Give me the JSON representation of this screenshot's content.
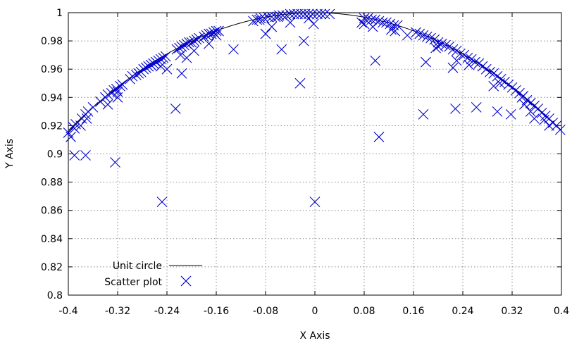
{
  "chart_data": {
    "type": "scatter",
    "xlabel": "X Axis",
    "ylabel": "Y Axis",
    "xlim": [
      -0.4,
      0.4
    ],
    "ylim": [
      0.8,
      1.0
    ],
    "grid": true,
    "legend_position": "bottom-left",
    "x_ticks": [
      -0.4,
      -0.32,
      -0.24,
      -0.16,
      -0.08,
      0,
      0.08,
      0.16,
      0.24,
      0.32,
      0.4
    ],
    "x_tick_labels": [
      "-0.4",
      "-0.32",
      "-0.24",
      "-0.16",
      "-0.08",
      "0",
      "0.08",
      "0.16",
      "0.24",
      "0.32",
      "0.4"
    ],
    "y_ticks": [
      0.8,
      0.82,
      0.84,
      0.86,
      0.88,
      0.9,
      0.92,
      0.94,
      0.96,
      0.98,
      1.0
    ],
    "y_tick_labels": [
      "0.8",
      "0.82",
      "0.84",
      "0.86",
      "0.88",
      "0.9",
      "0.92",
      "0.94",
      "0.96",
      "0.98",
      "1"
    ],
    "series": [
      {
        "name": "Unit circle",
        "type": "line",
        "color": "#000000",
        "function": "sqrt(1 - x^2)"
      },
      {
        "name": "Scatter plot",
        "type": "scatter",
        "marker": "x",
        "color": "#0000cc",
        "x": [
          -0.4,
          -0.392,
          -0.388,
          -0.378,
          -0.372,
          -0.368,
          -0.36,
          -0.348,
          -0.34,
          -0.336,
          -0.33,
          -0.326,
          -0.322,
          -0.316,
          -0.312,
          -0.3,
          -0.296,
          -0.29,
          -0.286,
          -0.282,
          -0.278,
          -0.274,
          -0.27,
          -0.266,
          -0.262,
          -0.258,
          -0.254,
          -0.25,
          -0.246,
          -0.242,
          -0.224,
          -0.22,
          -0.216,
          -0.212,
          -0.208,
          -0.204,
          -0.2,
          -0.196,
          -0.192,
          -0.188,
          -0.18,
          -0.176,
          -0.172,
          -0.168,
          -0.164,
          -0.16,
          -0.156,
          -0.1,
          -0.094,
          -0.088,
          -0.082,
          -0.076,
          -0.07,
          -0.064,
          -0.058,
          -0.052,
          -0.046,
          -0.04,
          -0.034,
          -0.028,
          -0.022,
          -0.016,
          -0.01,
          -0.004,
          0.004,
          0.01,
          0.016,
          0.024,
          0.08,
          0.086,
          0.092,
          0.098,
          0.104,
          0.11,
          0.116,
          0.122,
          0.128,
          0.134,
          0.164,
          0.17,
          0.176,
          0.182,
          0.188,
          0.194,
          0.2,
          0.206,
          0.212,
          0.218,
          0.224,
          0.23,
          0.236,
          0.242,
          0.248,
          0.254,
          0.26,
          0.266,
          0.272,
          0.278,
          0.284,
          0.29,
          0.296,
          0.302,
          0.308,
          0.314,
          0.32,
          0.326,
          0.332,
          0.338,
          0.344,
          0.35,
          0.356,
          0.362,
          0.368,
          0.374,
          0.38,
          0.386,
          0.392,
          0.398,
          -0.396,
          -0.38,
          -0.336,
          -0.32,
          -0.25,
          -0.218,
          -0.196,
          -0.172,
          -0.07,
          -0.04,
          -0.002,
          0.076,
          0.094,
          0.124,
          0.15,
          0.196,
          0.23,
          0.3,
          0.34,
          0.372,
          -0.39,
          -0.37,
          -0.32,
          -0.24,
          -0.16,
          -0.09,
          -0.06,
          -0.01,
          0.08,
          0.13,
          0.2,
          0.25,
          0.35,
          0.38,
          -0.216,
          -0.208,
          -0.132,
          -0.08,
          -0.054,
          -0.018,
          0.098,
          0.18,
          0.224,
          0.29,
          0.336,
          -0.39,
          -0.372,
          -0.324,
          -0.248,
          -0.226,
          -0.024,
          0.0,
          0.104,
          0.176,
          0.228,
          0.262,
          0.296,
          0.318,
          0.356
        ],
        "y": [
          0.915,
          0.919,
          0.921,
          0.925,
          0.928,
          0.93,
          0.933,
          0.937,
          0.94,
          0.942,
          0.943,
          0.945,
          0.946,
          0.948,
          0.949,
          0.953,
          0.955,
          0.956,
          0.957,
          0.958,
          0.96,
          0.961,
          0.962,
          0.963,
          0.964,
          0.965,
          0.966,
          0.967,
          0.968,
          0.969,
          0.974,
          0.975,
          0.976,
          0.977,
          0.978,
          0.979,
          0.979,
          0.98,
          0.981,
          0.982,
          0.983,
          0.984,
          0.985,
          0.985,
          0.986,
          0.987,
          0.987,
          0.994,
          0.995,
          0.996,
          0.996,
          0.997,
          0.997,
          0.997,
          0.998,
          0.998,
          0.998,
          0.999,
          0.999,
          0.999,
          0.999,
          0.999,
          0.999,
          0.999,
          0.999,
          0.999,
          0.999,
          0.999,
          0.996,
          0.996,
          0.995,
          0.995,
          0.994,
          0.993,
          0.993,
          0.992,
          0.991,
          0.991,
          0.986,
          0.985,
          0.984,
          0.983,
          0.982,
          0.981,
          0.979,
          0.978,
          0.977,
          0.976,
          0.974,
          0.973,
          0.971,
          0.97,
          0.968,
          0.967,
          0.965,
          0.964,
          0.962,
          0.96,
          0.958,
          0.957,
          0.955,
          0.953,
          0.951,
          0.949,
          0.947,
          0.945,
          0.943,
          0.941,
          0.938,
          0.936,
          0.934,
          0.932,
          0.929,
          0.927,
          0.925,
          0.922,
          0.92,
          0.917,
          0.912,
          0.92,
          0.935,
          0.94,
          0.962,
          0.97,
          0.973,
          0.978,
          0.99,
          0.993,
          0.992,
          0.993,
          0.99,
          0.988,
          0.984,
          0.975,
          0.966,
          0.95,
          0.935,
          0.924,
          0.918,
          0.925,
          0.944,
          0.96,
          0.984,
          0.995,
          0.997,
          0.996,
          0.992,
          0.987,
          0.976,
          0.963,
          0.93,
          0.92,
          0.957,
          0.968,
          0.974,
          0.985,
          0.974,
          0.98,
          0.966,
          0.965,
          0.961,
          0.948,
          0.94,
          0.899,
          0.899,
          0.894,
          0.866,
          0.932,
          0.95,
          0.866,
          0.912,
          0.928,
          0.932,
          0.933,
          0.93,
          0.928,
          0.925
        ]
      }
    ]
  }
}
